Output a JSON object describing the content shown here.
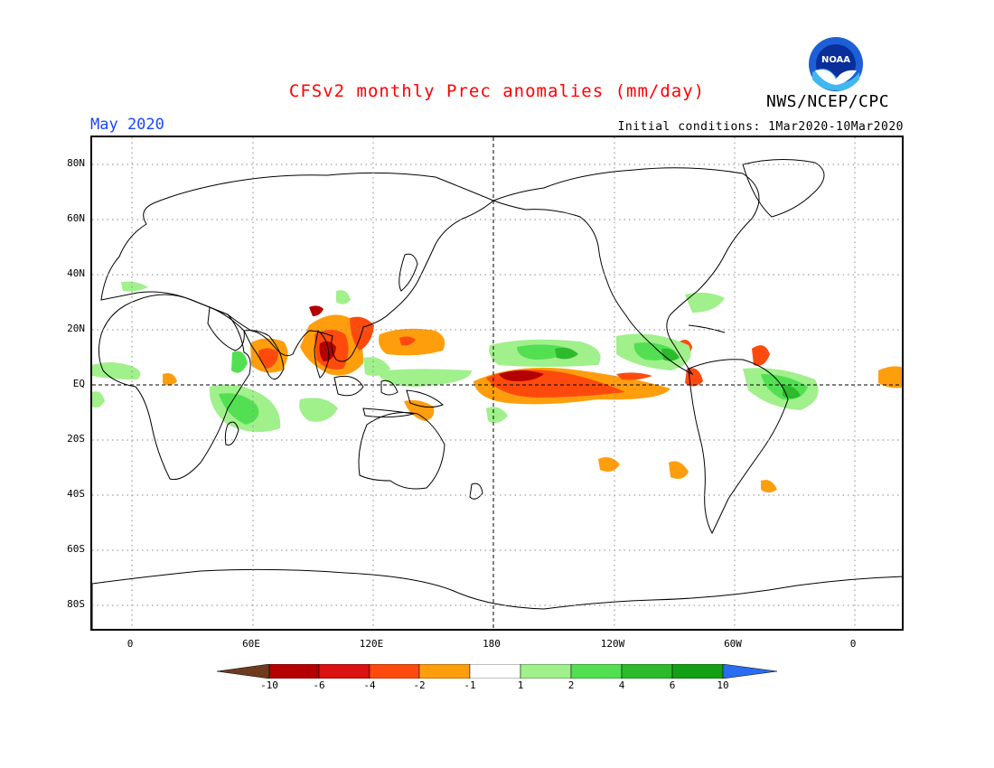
{
  "title": "CFSv2 monthly Prec anomalies (mm/day)",
  "organization": "NWS/NCEP/CPC",
  "logo_text": "NOAA",
  "period": "May 2020",
  "initial_conditions": "Initial conditions: 1Mar2020-10Mar2020",
  "colors": {
    "title": "#ff0000",
    "period": "#1a46ff",
    "land_outline": "#000000",
    "grid": "#888888"
  },
  "lat_labels": [
    "80N",
    "60N",
    "40N",
    "20N",
    "EQ",
    "20S",
    "40S",
    "60S",
    "80S"
  ],
  "lon_labels": [
    "0",
    "60E",
    "120E",
    "180",
    "120W",
    "60W",
    "0"
  ],
  "colorbar": {
    "labels": [
      "-10",
      "-6",
      "-4",
      "-2",
      "-1",
      "1",
      "2",
      "4",
      "6",
      "10"
    ],
    "colors": [
      "#6e3b1f",
      "#b40000",
      "#d91111",
      "#ff4a0e",
      "#ff9e0d",
      "#ffffff",
      "#a0f08c",
      "#52e052",
      "#2dba2d",
      "#14a014",
      "#2a6cf2"
    ]
  }
}
